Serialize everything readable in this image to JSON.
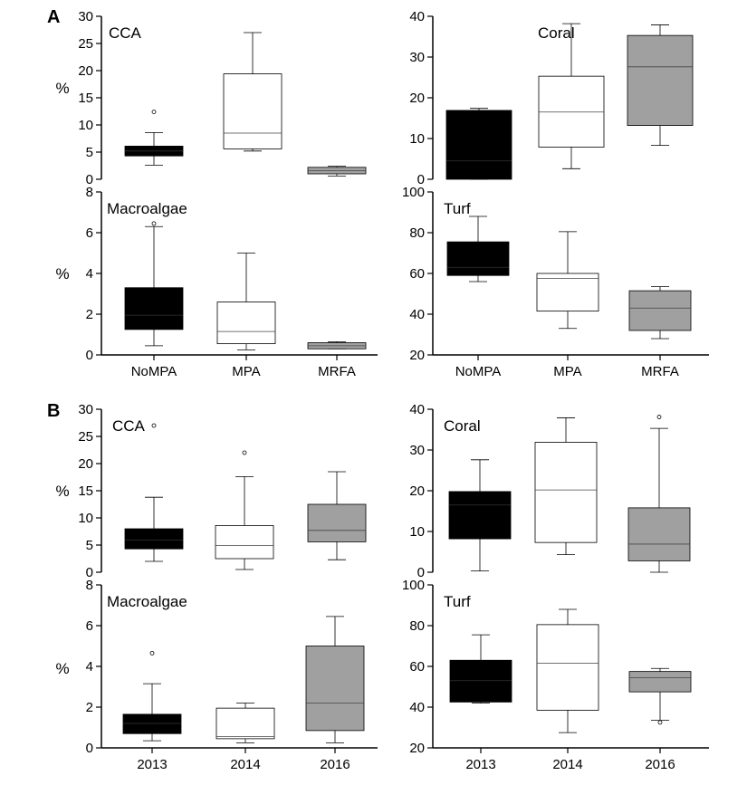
{
  "panels": [
    {
      "letter": "A",
      "ylabel": "%",
      "categories": [
        "NoMPA",
        "MPA",
        "MRFA"
      ]
    },
    {
      "letter": "B",
      "ylabel": "%",
      "categories": [
        "2013",
        "2014",
        "2016"
      ]
    }
  ],
  "colors": {
    "dark": "#000000",
    "white": "#ffffff",
    "gray": "#a0a0a0",
    "axis": "#000000"
  },
  "chart_data": [
    {
      "type": "box",
      "panel": "A",
      "title": "CCA",
      "ylabel": "%",
      "categories": [
        "NoMPA",
        "MPA",
        "MRFA"
      ],
      "ylim": [
        0,
        30
      ],
      "yticks": [
        0,
        5,
        10,
        15,
        20,
        25,
        30
      ],
      "boxes": [
        {
          "category": "NoMPA",
          "fill": "dark",
          "min": 2.6,
          "q1": 4.3,
          "median": 5.2,
          "q3": 6.1,
          "max": 8.6,
          "outliers": [
            12.4
          ]
        },
        {
          "category": "MPA",
          "fill": "white",
          "min": 5.2,
          "q1": 5.6,
          "median": 8.5,
          "q3": 19.4,
          "max": 27.0,
          "outliers": []
        },
        {
          "category": "MRFA",
          "fill": "gray",
          "min": 0.6,
          "q1": 1.0,
          "median": 1.6,
          "q3": 2.2,
          "max": 2.4,
          "outliers": []
        }
      ]
    },
    {
      "type": "box",
      "panel": "A",
      "title": "Coral",
      "ylabel": "",
      "categories": [
        "NoMPA",
        "MPA",
        "MRFA"
      ],
      "ylim": [
        0,
        40
      ],
      "yticks": [
        0,
        10,
        20,
        30,
        40
      ],
      "boxes": [
        {
          "category": "NoMPA",
          "fill": "dark",
          "min": 0,
          "q1": 0,
          "median": 4.5,
          "q3": 16.9,
          "max": 17.4,
          "outliers": []
        },
        {
          "category": "MPA",
          "fill": "white",
          "min": 2.6,
          "q1": 7.9,
          "median": 16.5,
          "q3": 25.3,
          "max": 38.2,
          "outliers": []
        },
        {
          "category": "MRFA",
          "fill": "gray",
          "min": 8.3,
          "q1": 13.2,
          "median": 27.6,
          "q3": 35.3,
          "max": 37.9,
          "outliers": []
        }
      ]
    },
    {
      "type": "box",
      "panel": "A",
      "title": "Macroalgae",
      "ylabel": "%",
      "categories": [
        "NoMPA",
        "MPA",
        "MRFA"
      ],
      "ylim": [
        0,
        8
      ],
      "yticks": [
        0,
        2,
        4,
        6,
        8
      ],
      "boxes": [
        {
          "category": "NoMPA",
          "fill": "dark",
          "min": 0.45,
          "q1": 1.25,
          "median": 1.95,
          "q3": 3.3,
          "max": 6.3,
          "outliers": [
            6.45
          ]
        },
        {
          "category": "MPA",
          "fill": "white",
          "min": 0.25,
          "q1": 0.55,
          "median": 1.15,
          "q3": 2.6,
          "max": 5.0,
          "outliers": []
        },
        {
          "category": "MRFA",
          "fill": "gray",
          "min": 0.3,
          "q1": 0.3,
          "median": 0.45,
          "q3": 0.6,
          "max": 0.65,
          "outliers": []
        }
      ]
    },
    {
      "type": "box",
      "panel": "A",
      "title": "Turf",
      "ylabel": "",
      "categories": [
        "NoMPA",
        "MPA",
        "MRFA"
      ],
      "ylim": [
        20,
        100
      ],
      "yticks": [
        20,
        40,
        60,
        80,
        100
      ],
      "boxes": [
        {
          "category": "NoMPA",
          "fill": "dark",
          "min": 56,
          "q1": 59,
          "median": 63,
          "q3": 75.5,
          "max": 88,
          "outliers": []
        },
        {
          "category": "MPA",
          "fill": "white",
          "min": 33,
          "q1": 41.5,
          "median": 57.5,
          "q3": 60,
          "max": 80.5,
          "outliers": []
        },
        {
          "category": "MRFA",
          "fill": "gray",
          "min": 28,
          "q1": 32,
          "median": 43,
          "q3": 51.5,
          "max": 53.5,
          "outliers": []
        }
      ]
    },
    {
      "type": "box",
      "panel": "B",
      "title": "CCA",
      "ylabel": "%",
      "categories": [
        "2013",
        "2014",
        "2016"
      ],
      "ylim": [
        0,
        30
      ],
      "yticks": [
        0,
        5,
        10,
        15,
        20,
        25,
        30
      ],
      "boxes": [
        {
          "category": "2013",
          "fill": "dark",
          "min": 2.0,
          "q1": 4.3,
          "median": 5.9,
          "q3": 8.0,
          "max": 13.8,
          "outliers": [
            27.0
          ]
        },
        {
          "category": "2014",
          "fill": "white",
          "min": 0.5,
          "q1": 2.5,
          "median": 4.9,
          "q3": 8.6,
          "max": 17.6,
          "outliers": [
            22.0
          ]
        },
        {
          "category": "2016",
          "fill": "gray",
          "min": 2.3,
          "q1": 5.6,
          "median": 7.7,
          "q3": 12.5,
          "max": 18.5,
          "outliers": []
        }
      ]
    },
    {
      "type": "box",
      "panel": "B",
      "title": "Coral",
      "ylabel": "",
      "categories": [
        "2013",
        "2014",
        "2016"
      ],
      "ylim": [
        0,
        40
      ],
      "yticks": [
        0,
        10,
        20,
        30,
        40
      ],
      "boxes": [
        {
          "category": "2013",
          "fill": "dark",
          "min": 0.3,
          "q1": 8.2,
          "median": 16.5,
          "q3": 19.8,
          "max": 27.6,
          "outliers": []
        },
        {
          "category": "2014",
          "fill": "white",
          "min": 4.3,
          "q1": 7.3,
          "median": 20.2,
          "q3": 31.9,
          "max": 37.9,
          "outliers": []
        },
        {
          "category": "2016",
          "fill": "gray",
          "min": 0,
          "q1": 2.8,
          "median": 6.9,
          "q3": 15.8,
          "max": 35.3,
          "outliers": [
            38.1
          ]
        }
      ]
    },
    {
      "type": "box",
      "panel": "B",
      "title": "Macroalgae",
      "ylabel": "%",
      "categories": [
        "2013",
        "2014",
        "2016"
      ],
      "ylim": [
        0,
        8
      ],
      "yticks": [
        0,
        2,
        4,
        6,
        8
      ],
      "boxes": [
        {
          "category": "2013",
          "fill": "dark",
          "min": 0.35,
          "q1": 0.7,
          "median": 1.2,
          "q3": 1.65,
          "max": 3.15,
          "outliers": [
            4.65
          ]
        },
        {
          "category": "2014",
          "fill": "white",
          "min": 0.25,
          "q1": 0.45,
          "median": 0.55,
          "q3": 1.95,
          "max": 2.2,
          "outliers": []
        },
        {
          "category": "2016",
          "fill": "gray",
          "min": 0.25,
          "q1": 0.85,
          "median": 2.2,
          "q3": 5.0,
          "max": 6.45,
          "outliers": []
        }
      ]
    },
    {
      "type": "box",
      "panel": "B",
      "title": "Turf",
      "ylabel": "",
      "categories": [
        "2013",
        "2014",
        "2016"
      ],
      "ylim": [
        20,
        100
      ],
      "yticks": [
        20,
        40,
        60,
        80,
        100
      ],
      "boxes": [
        {
          "category": "2013",
          "fill": "dark",
          "min": 42,
          "q1": 42.5,
          "median": 53,
          "q3": 63,
          "max": 75.5,
          "outliers": []
        },
        {
          "category": "2014",
          "fill": "white",
          "min": 27.5,
          "q1": 38.5,
          "median": 61.5,
          "q3": 80.5,
          "max": 88,
          "outliers": []
        },
        {
          "category": "2016",
          "fill": "gray",
          "min": 33.5,
          "q1": 47.5,
          "median": 54.5,
          "q3": 57.5,
          "max": 59,
          "outliers": [
            32.5
          ]
        }
      ]
    }
  ]
}
